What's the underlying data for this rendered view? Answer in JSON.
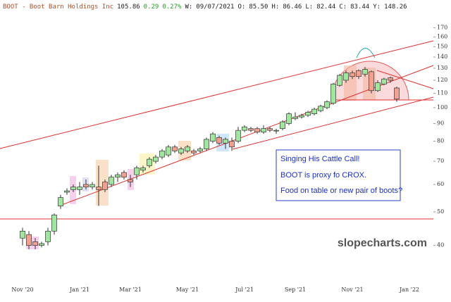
{
  "chart_data": {
    "type": "candlestick",
    "header": [
      {
        "text": "BOOT - Boot Barn Holdings Inc",
        "color": "#b0502a"
      },
      {
        "text": "105.86",
        "color": "#222222"
      },
      {
        "text": "0.29",
        "color": "#2a9d2a"
      },
      {
        "text": "0.27%",
        "color": "#2a9d2a"
      },
      {
        "text": "W:",
        "color": "#222222"
      },
      {
        "text": "09/07/2021",
        "color": "#222222"
      },
      {
        "text": "O:",
        "color": "#222222"
      },
      {
        "text": "85.50",
        "color": "#222222"
      },
      {
        "text": "H:",
        "color": "#222222"
      },
      {
        "text": "86.46",
        "color": "#222222"
      },
      {
        "text": "L:",
        "color": "#222222"
      },
      {
        "text": "82.44",
        "color": "#222222"
      },
      {
        "text": "C:",
        "color": "#222222"
      },
      {
        "text": "83.44",
        "color": "#222222"
      },
      {
        "text": "Y:",
        "color": "#222222"
      },
      {
        "text": "148.26",
        "color": "#222222"
      }
    ],
    "annotations": [
      "Singing His Cattle Call!",
      "BOOT is proxy fo CROX.",
      "Food on table or new pair of boots?"
    ],
    "watermark": "slopecharts.com",
    "categories": [
      "Nov '20",
      null,
      null,
      null,
      null,
      null,
      null,
      null,
      null,
      "Jan '21",
      null,
      null,
      null,
      null,
      null,
      null,
      null,
      "Mar '21",
      null,
      null,
      null,
      null,
      null,
      null,
      null,
      null,
      "May '21",
      null,
      null,
      null,
      null,
      null,
      null,
      null,
      null,
      "Jul '21",
      null,
      null,
      null,
      null,
      null,
      null,
      null,
      "Sep '21",
      null,
      null,
      null,
      null,
      null,
      null,
      null,
      null,
      "Nov '21",
      null,
      null,
      null,
      null,
      null,
      null,
      null,
      null,
      "Jan '22"
    ],
    "open": [
      42,
      43,
      41,
      40,
      41,
      44,
      52,
      57,
      58,
      58,
      60,
      59,
      59,
      61,
      60,
      63,
      65,
      62,
      64,
      66,
      68,
      70,
      72,
      73,
      77,
      74,
      75,
      75,
      75,
      76,
      80,
      82,
      79,
      80,
      80,
      86,
      87,
      87,
      85,
      87,
      86,
      87,
      90,
      93,
      94,
      95,
      96,
      98,
      100,
      103,
      116,
      120,
      126,
      128,
      125,
      127,
      112,
      117,
      122,
      114,
      null,
      null
    ],
    "high": [
      45,
      44,
      42,
      41,
      45,
      49.5,
      56,
      58.5,
      60,
      61,
      62,
      61,
      68,
      62,
      64,
      65,
      66,
      64,
      68,
      68,
      72,
      73,
      76,
      78,
      78,
      77,
      78,
      76,
      77,
      82,
      85,
      83,
      82,
      82,
      88,
      89,
      88,
      88,
      89,
      88,
      87,
      92,
      97,
      97,
      96,
      98,
      100,
      102,
      105,
      118,
      125,
      128,
      128,
      129,
      131,
      128,
      120,
      122,
      123,
      115,
      null,
      null
    ],
    "low": [
      40,
      39,
      39,
      39.5,
      40,
      43,
      51,
      56,
      57,
      56,
      58,
      58,
      52,
      57,
      59,
      61,
      62,
      59,
      62,
      65,
      67,
      69,
      71,
      72,
      74,
      73,
      74,
      73,
      74,
      75,
      79,
      78,
      76,
      75,
      79,
      85,
      85,
      84,
      84,
      85,
      84,
      86,
      89,
      92,
      93,
      94,
      95,
      97,
      99,
      102,
      115,
      118,
      121,
      121,
      123,
      110,
      111,
      116,
      118,
      104,
      null,
      null
    ],
    "close": [
      44,
      40,
      40,
      40.5,
      44,
      49,
      55,
      57.5,
      59,
      59,
      59,
      60,
      58,
      58,
      63,
      64,
      63,
      61,
      67,
      67,
      71,
      72,
      75,
      77,
      75,
      76,
      77,
      74,
      76,
      81,
      84,
      79,
      81,
      77,
      86,
      88,
      86,
      85,
      87,
      86,
      86,
      91,
      96,
      94,
      95,
      97,
      99,
      101,
      104,
      117,
      124,
      126,
      123,
      123,
      129,
      112,
      118,
      121,
      120,
      105.86,
      null,
      null
    ],
    "up_color": "#9ee89e",
    "down_color": "#f4a08e",
    "log_scale": true,
    "ylim": [
      32.2,
      184.6
    ],
    "yticks": [
      40,
      50,
      60,
      70,
      80,
      90,
      100,
      110,
      120,
      130,
      140,
      150,
      160,
      170
    ]
  }
}
